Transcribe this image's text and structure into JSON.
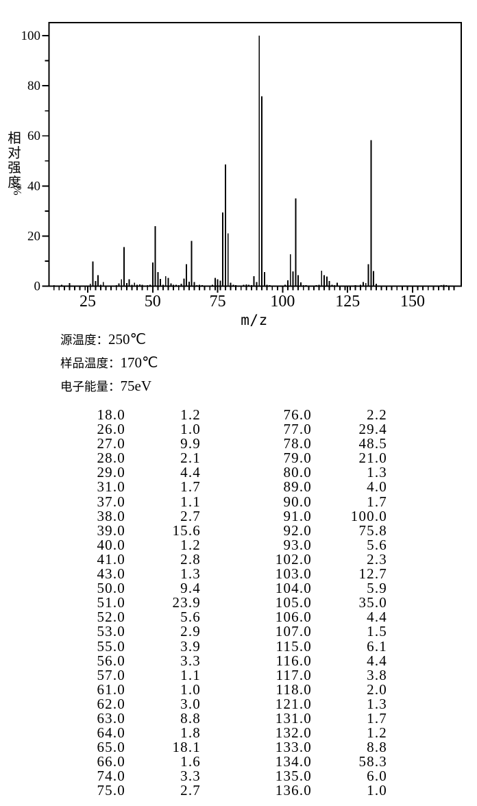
{
  "chart_data": {
    "type": "bar",
    "subtype": "mass-spectrum-stick-plot",
    "xlabel": "m/z",
    "ylabel": "相对强度/%",
    "ylabel_chars": [
      "相",
      "对",
      "强",
      "度"
    ],
    "ylabel_unit": "/%",
    "xlim": [
      10,
      168
    ],
    "ylim": [
      0,
      105
    ],
    "xticks": [
      25,
      50,
      75,
      100,
      125,
      150
    ],
    "yticks": [
      0,
      20,
      40,
      60,
      80,
      100
    ],
    "x_minor_step": 2,
    "y_minor_step": 10,
    "grid": false,
    "legend": false,
    "peaks": [
      [
        18,
        1.2
      ],
      [
        26,
        1.0
      ],
      [
        27,
        9.9
      ],
      [
        28,
        2.1
      ],
      [
        29,
        4.4
      ],
      [
        31,
        1.7
      ],
      [
        37,
        1.1
      ],
      [
        38,
        2.7
      ],
      [
        39,
        15.6
      ],
      [
        40,
        1.2
      ],
      [
        41,
        2.8
      ],
      [
        43,
        1.3
      ],
      [
        50,
        9.4
      ],
      [
        51,
        23.9
      ],
      [
        52,
        5.6
      ],
      [
        53,
        2.9
      ],
      [
        55,
        3.9
      ],
      [
        56,
        3.3
      ],
      [
        57,
        1.1
      ],
      [
        61,
        1.0
      ],
      [
        62,
        3.0
      ],
      [
        63,
        8.8
      ],
      [
        64,
        1.8
      ],
      [
        65,
        18.1
      ],
      [
        66,
        1.6
      ],
      [
        74,
        3.3
      ],
      [
        75,
        2.7
      ],
      [
        76,
        2.2
      ],
      [
        77,
        29.4
      ],
      [
        78,
        48.5
      ],
      [
        79,
        21.0
      ],
      [
        80,
        1.3
      ],
      [
        89,
        4.0
      ],
      [
        90,
        1.7
      ],
      [
        91,
        100.0
      ],
      [
        92,
        75.8
      ],
      [
        93,
        5.6
      ],
      [
        102,
        2.3
      ],
      [
        103,
        12.7
      ],
      [
        104,
        5.9
      ],
      [
        105,
        35.0
      ],
      [
        106,
        4.4
      ],
      [
        107,
        1.5
      ],
      [
        115,
        6.1
      ],
      [
        116,
        4.4
      ],
      [
        117,
        3.8
      ],
      [
        118,
        2.0
      ],
      [
        121,
        1.3
      ],
      [
        131,
        1.7
      ],
      [
        132,
        1.2
      ],
      [
        133,
        8.8
      ],
      [
        134,
        58.3
      ],
      [
        135,
        6.0
      ],
      [
        136,
        1.0
      ]
    ],
    "trace_peaks": [
      [
        12,
        0.4
      ],
      [
        13,
        0.3
      ],
      [
        15,
        0.6
      ],
      [
        16,
        0.3
      ],
      [
        20,
        0.3
      ],
      [
        30,
        0.6
      ],
      [
        32,
        0.3
      ],
      [
        36,
        0.4
      ],
      [
        42,
        0.5
      ],
      [
        44,
        0.6
      ],
      [
        45,
        0.7
      ],
      [
        46,
        0.5
      ],
      [
        48,
        0.4
      ],
      [
        49,
        0.6
      ],
      [
        54,
        0.5
      ],
      [
        58,
        0.5
      ],
      [
        59,
        0.6
      ],
      [
        60,
        0.4
      ],
      [
        67,
        0.4
      ],
      [
        68,
        0.5
      ],
      [
        69,
        0.4
      ],
      [
        71,
        0.3
      ],
      [
        73,
        0.6
      ],
      [
        81,
        0.5
      ],
      [
        82,
        0.4
      ],
      [
        85,
        0.5
      ],
      [
        86,
        0.7
      ],
      [
        87,
        0.5
      ],
      [
        88,
        0.4
      ],
      [
        94,
        0.6
      ],
      [
        95,
        0.4
      ],
      [
        96,
        0.3
      ],
      [
        101,
        0.5
      ],
      [
        108,
        0.4
      ],
      [
        109,
        0.4
      ],
      [
        111,
        0.3
      ],
      [
        113,
        0.4
      ],
      [
        114,
        0.6
      ],
      [
        119,
        0.5
      ],
      [
        120,
        0.4
      ],
      [
        122,
        0.3
      ],
      [
        128,
        0.4
      ],
      [
        129,
        0.3
      ],
      [
        130,
        0.5
      ],
      [
        161,
        0.4
      ],
      [
        162,
        0.5
      ],
      [
        163,
        0.4
      ]
    ]
  },
  "conditions": [
    {
      "label": "源温度：",
      "value": "250℃"
    },
    {
      "label": "样品温度：",
      "value": "170℃"
    },
    {
      "label": "电子能量：",
      "value": "75eV"
    }
  ]
}
